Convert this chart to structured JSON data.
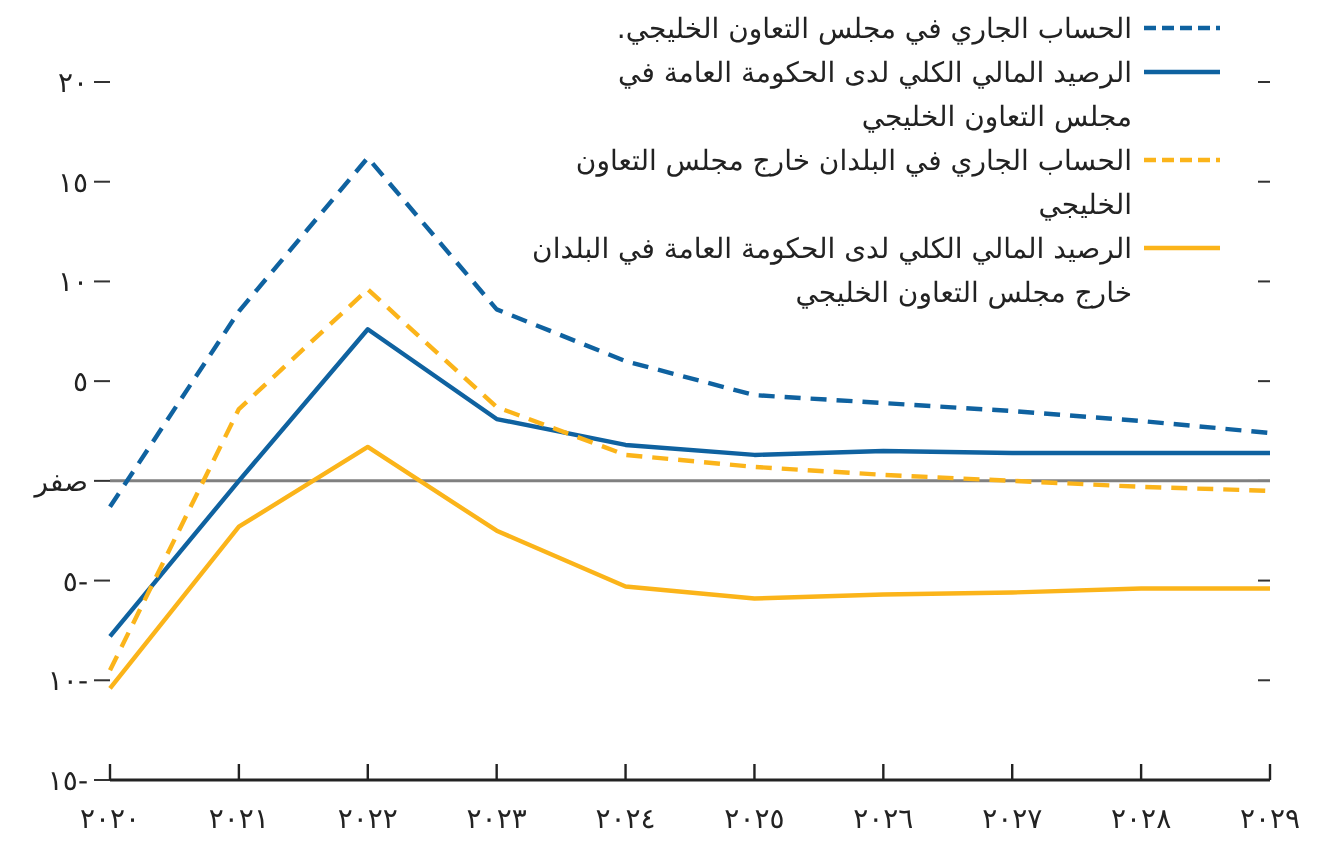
{
  "chart_data": {
    "type": "line",
    "categories": [
      "٢٠٢٠",
      "٢٠٢١",
      "٢٠٢٢",
      "٢٠٢٣",
      "٢٠٢٤",
      "٢٠٢٥",
      "٢٠٢٦",
      "٢٠٢٧",
      "٢٠٢٨",
      "٢٠٢٩"
    ],
    "series": [
      {
        "name": "الحساب الجاري في مجلس التعاون الخليجي.",
        "color": "#0f62a0",
        "line_style": "dashed",
        "values": [
          -1.3,
          8.5,
          16.2,
          8.6,
          6.0,
          4.3,
          3.9,
          3.5,
          3.0,
          2.4
        ]
      },
      {
        "name": "الرصيد المالي الكلي لدى الحكومة العامة في مجلس التعاون الخليجي",
        "color": "#0f62a0",
        "line_style": "solid",
        "values": [
          -7.8,
          0.0,
          7.6,
          3.1,
          1.8,
          1.3,
          1.5,
          1.4,
          1.4,
          1.4
        ]
      },
      {
        "name": "الحساب الجاري في البلدان خارج مجلس التعاون الخليجي",
        "color": "#fbb41a",
        "line_style": "dashed",
        "values": [
          -9.5,
          3.6,
          9.6,
          3.7,
          1.3,
          0.7,
          0.3,
          0.0,
          -0.3,
          -0.5
        ]
      },
      {
        "name": "الرصيد المالي الكلي لدى الحكومة العامة في البلدان خارج مجلس التعاون الخليجي",
        "color": "#fbb41a",
        "line_style": "solid",
        "values": [
          -10.4,
          -2.3,
          1.7,
          -2.5,
          -5.3,
          -5.9,
          -5.7,
          -5.6,
          -5.4,
          -5.4
        ]
      }
    ],
    "ylim": [
      -15,
      20
    ],
    "yticks": [
      {
        "value": -15,
        "label": "١٥-"
      },
      {
        "value": -10,
        "label": "١٠-"
      },
      {
        "value": -5,
        "label": "٥-"
      },
      {
        "value": 0,
        "label": "صفر"
      },
      {
        "value": 5,
        "label": "٥"
      },
      {
        "value": 10,
        "label": "١٠"
      },
      {
        "value": 15,
        "label": "١٥"
      },
      {
        "value": 20,
        "label": "٢٠"
      }
    ],
    "ref_lines": [
      {
        "axis": "y",
        "value": 0,
        "color": "#808080"
      }
    ],
    "legend": "top right",
    "grid": false
  }
}
